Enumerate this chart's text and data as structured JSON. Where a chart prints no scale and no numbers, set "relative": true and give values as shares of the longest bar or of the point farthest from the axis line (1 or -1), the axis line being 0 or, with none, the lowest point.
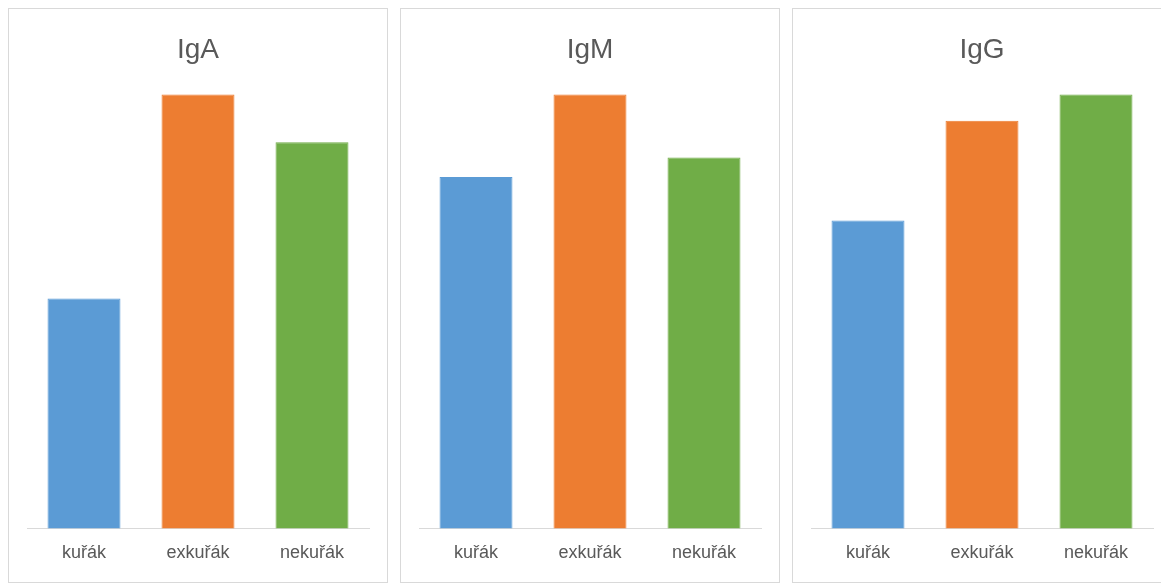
{
  "chart_data": [
    {
      "type": "bar",
      "title": "IgA",
      "categories": [
        "kuřák",
        "exkuřák",
        "nekuřák"
      ],
      "values": [
        0.53,
        1,
        0.89
      ],
      "colors": [
        "#5b9bd5",
        "#ed7d31",
        "#70ad47"
      ],
      "relative": true
    },
    {
      "type": "bar",
      "title": "IgM",
      "categories": [
        "kuřák",
        "exkuřák",
        "nekuřák"
      ],
      "values": [
        0.81,
        1,
        0.855
      ],
      "colors": [
        "#5b9bd5",
        "#ed7d31",
        "#70ad47"
      ],
      "relative": true
    },
    {
      "type": "bar",
      "title": "IgG",
      "categories": [
        "kuřák",
        "exkuřák",
        "nekuřák"
      ],
      "values": [
        0.71,
        0.94,
        1
      ],
      "colors": [
        "#5b9bd5",
        "#ed7d31",
        "#70ad47"
      ],
      "relative": true
    }
  ]
}
